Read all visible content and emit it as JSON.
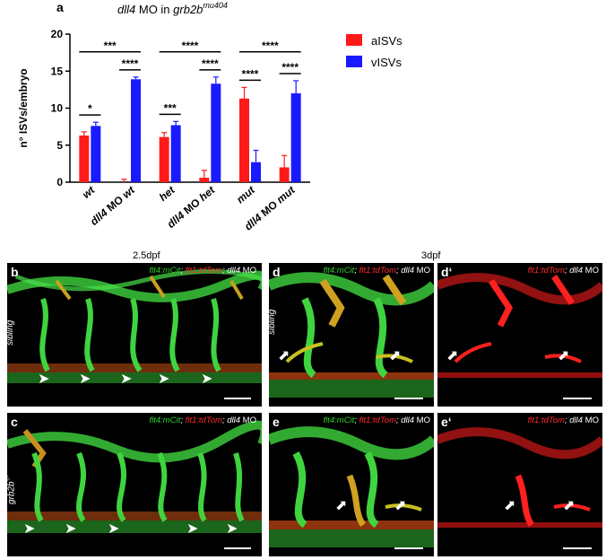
{
  "figure": {
    "panel_a_letter": "a",
    "title_gene": "dll4",
    "title_mid": " MO in ",
    "title_line": "grb2b",
    "title_allele": "mu404",
    "time_b": "2.5dpf",
    "time_d": "3dpf"
  },
  "chart_data": {
    "type": "bar",
    "ylabel": "n° ISVs/embryo",
    "ylim": [
      0,
      20
    ],
    "yticks": [
      0,
      5,
      10,
      15,
      20
    ],
    "categories": [
      "wt",
      "dll4 MO wt",
      "het",
      "dll4 MO het",
      "mut",
      "dll4 MO mut"
    ],
    "category_italic_gene": [
      false,
      true,
      false,
      true,
      false,
      true
    ],
    "legend_position": "top-right",
    "series": [
      {
        "name": "aISVs",
        "color": "#ff1a1a",
        "values": [
          6.3,
          0.0,
          6.1,
          0.6,
          11.3,
          2.0
        ],
        "errors": [
          0.5,
          0.4,
          0.6,
          1.0,
          1.5,
          1.6
        ]
      },
      {
        "name": "vISVs",
        "color": "#1a1aff",
        "values": [
          7.6,
          13.9,
          7.7,
          13.3,
          2.7,
          12.0
        ],
        "errors": [
          0.5,
          0.3,
          0.5,
          0.9,
          1.6,
          1.7
        ]
      }
    ],
    "within_pair_significance": [
      "*",
      "****",
      "***",
      "****",
      "****",
      "****"
    ],
    "between_group_significance": [
      "***",
      "****",
      "****"
    ]
  },
  "panels": {
    "b": {
      "letter": "b",
      "side_label": "sibling",
      "cap_1": "flt4:mCit",
      "cap_2": "flt1:tdTom",
      "cap_3": "dll4",
      "cap_4": " MO"
    },
    "c": {
      "letter": "c",
      "side_label": "grb2b",
      "side_sup": "-/-",
      "cap_1": "flt4:mCit",
      "cap_2": "flt1:tdTom",
      "cap_3": "dll4",
      "cap_4": " MO"
    },
    "d": {
      "letter": "d",
      "side_label": "sibling",
      "cap_1": "flt4:mCit",
      "cap_2": "flt1:tdTom",
      "cap_3": "dll4",
      "cap_4": " MO"
    },
    "d2": {
      "letter": "d‘",
      "cap_2": "flt1:tdTom",
      "cap_3": "dll4",
      "cap_4": " MO"
    },
    "e": {
      "letter": "e",
      "cap_1": "flt4:mCit",
      "cap_2": "flt1:tdTom",
      "cap_3": "dll4",
      "cap_4": " MO"
    },
    "e2": {
      "letter": "e‘",
      "cap_2": "flt1:tdTom",
      "cap_3": "dll4",
      "cap_4": " MO"
    }
  }
}
